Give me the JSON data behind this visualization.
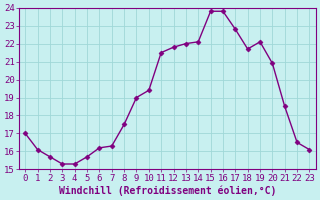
{
  "x": [
    0,
    1,
    2,
    3,
    4,
    5,
    6,
    7,
    8,
    9,
    10,
    11,
    12,
    13,
    14,
    15,
    16,
    17,
    18,
    19,
    20,
    21,
    22,
    23
  ],
  "y": [
    17.0,
    16.1,
    15.7,
    15.3,
    15.3,
    15.7,
    16.2,
    16.3,
    17.5,
    19.0,
    19.4,
    21.5,
    21.8,
    22.0,
    22.1,
    23.8,
    23.8,
    22.8,
    21.7,
    22.1,
    20.9,
    18.5,
    16.5,
    16.1
  ],
  "line_color": "#800080",
  "marker": "D",
  "marker_size": 2.5,
  "bg_color": "#c8f0f0",
  "grid_color": "#a0d8d8",
  "xlabel": "Windchill (Refroidissement éolien,°C)",
  "xlabel_color": "#800080",
  "tick_color": "#800080",
  "spine_color": "#800080",
  "ylim": [
    15,
    24
  ],
  "xlim": [
    -0.5,
    23.5
  ],
  "yticks": [
    15,
    16,
    17,
    18,
    19,
    20,
    21,
    22,
    23,
    24
  ],
  "xticks": [
    0,
    1,
    2,
    3,
    4,
    5,
    6,
    7,
    8,
    9,
    10,
    11,
    12,
    13,
    14,
    15,
    16,
    17,
    18,
    19,
    20,
    21,
    22,
    23
  ],
  "xtick_labels": [
    "0",
    "1",
    "2",
    "3",
    "4",
    "5",
    "6",
    "7",
    "8",
    "9",
    "10",
    "11",
    "12",
    "13",
    "14",
    "15",
    "16",
    "17",
    "18",
    "19",
    "20",
    "21",
    "22",
    "23"
  ],
  "font_size": 6.5,
  "xlabel_fontsize": 7.0,
  "linewidth": 1.0
}
